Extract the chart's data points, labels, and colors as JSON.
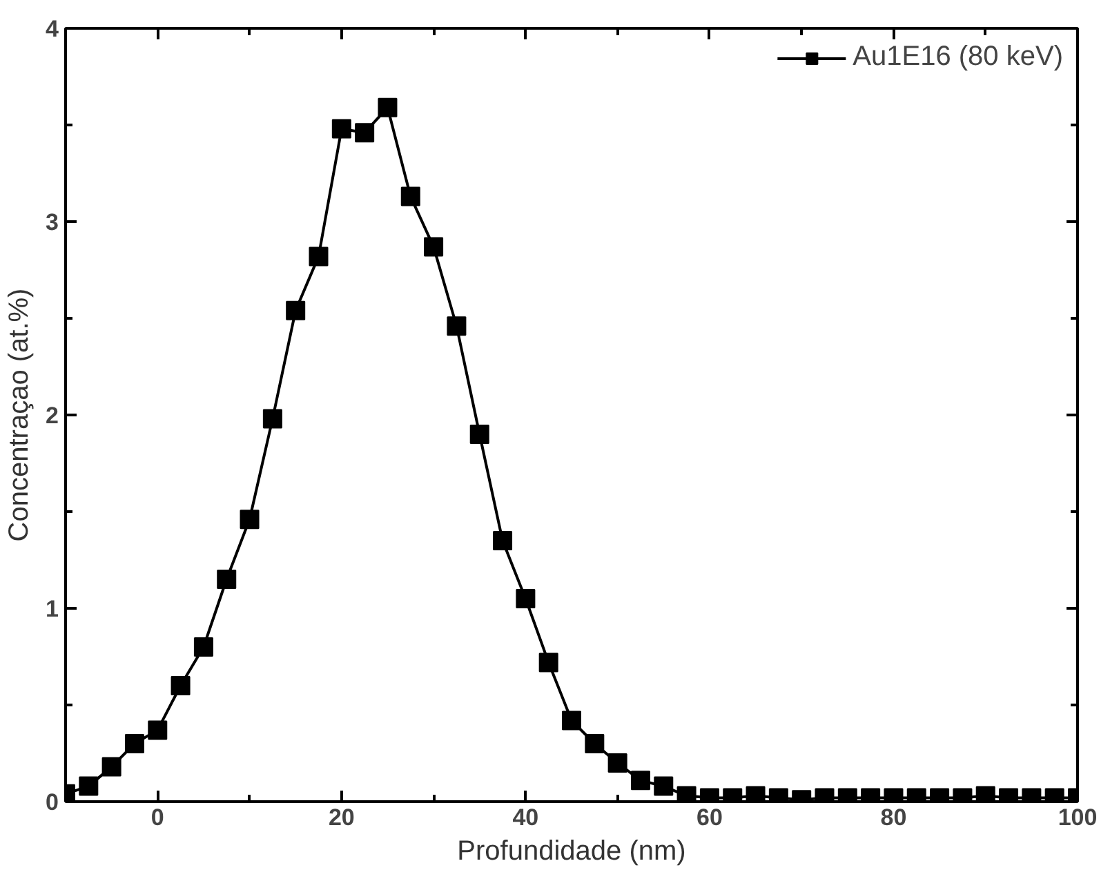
{
  "chart_data": {
    "type": "line",
    "xlabel": "Profundidade (nm)",
    "ylabel": "Concentraçao (at.%)",
    "x": [
      -10,
      -7.5,
      -5,
      -2.5,
      0,
      2.5,
      5,
      7.5,
      10,
      12.5,
      15,
      17.5,
      20,
      22.5,
      25,
      27.5,
      30,
      32.5,
      35,
      37.5,
      40,
      42.5,
      45,
      47.5,
      50,
      52.5,
      55,
      57.5,
      60,
      62.5,
      65,
      67.5,
      70,
      72.5,
      75,
      77.5,
      80,
      82.5,
      85,
      87.5,
      90,
      92.5,
      95,
      97.5,
      100
    ],
    "series": [
      {
        "name": "Au1E16 (80 keV)",
        "color": "#000000",
        "values": [
          0.04,
          0.08,
          0.18,
          0.3,
          0.37,
          0.6,
          0.8,
          1.15,
          1.46,
          1.98,
          2.54,
          2.82,
          3.48,
          3.46,
          3.59,
          3.13,
          2.87,
          2.46,
          1.9,
          1.35,
          1.05,
          0.72,
          0.42,
          0.3,
          0.2,
          0.11,
          0.08,
          0.03,
          0.02,
          0.02,
          0.03,
          0.02,
          0.01,
          0.02,
          0.02,
          0.02,
          0.02,
          0.02,
          0.02,
          0.02,
          0.03,
          0.02,
          0.02,
          0.02,
          0.02
        ]
      }
    ],
    "xlim": [
      -10,
      100
    ],
    "ylim": [
      0,
      4
    ],
    "xticks": [
      0,
      20,
      40,
      60,
      80,
      100
    ],
    "yticks": [
      0,
      1,
      2,
      3,
      4
    ],
    "grid": false,
    "legend": "top right",
    "marker": "square",
    "line_style": "solid"
  }
}
